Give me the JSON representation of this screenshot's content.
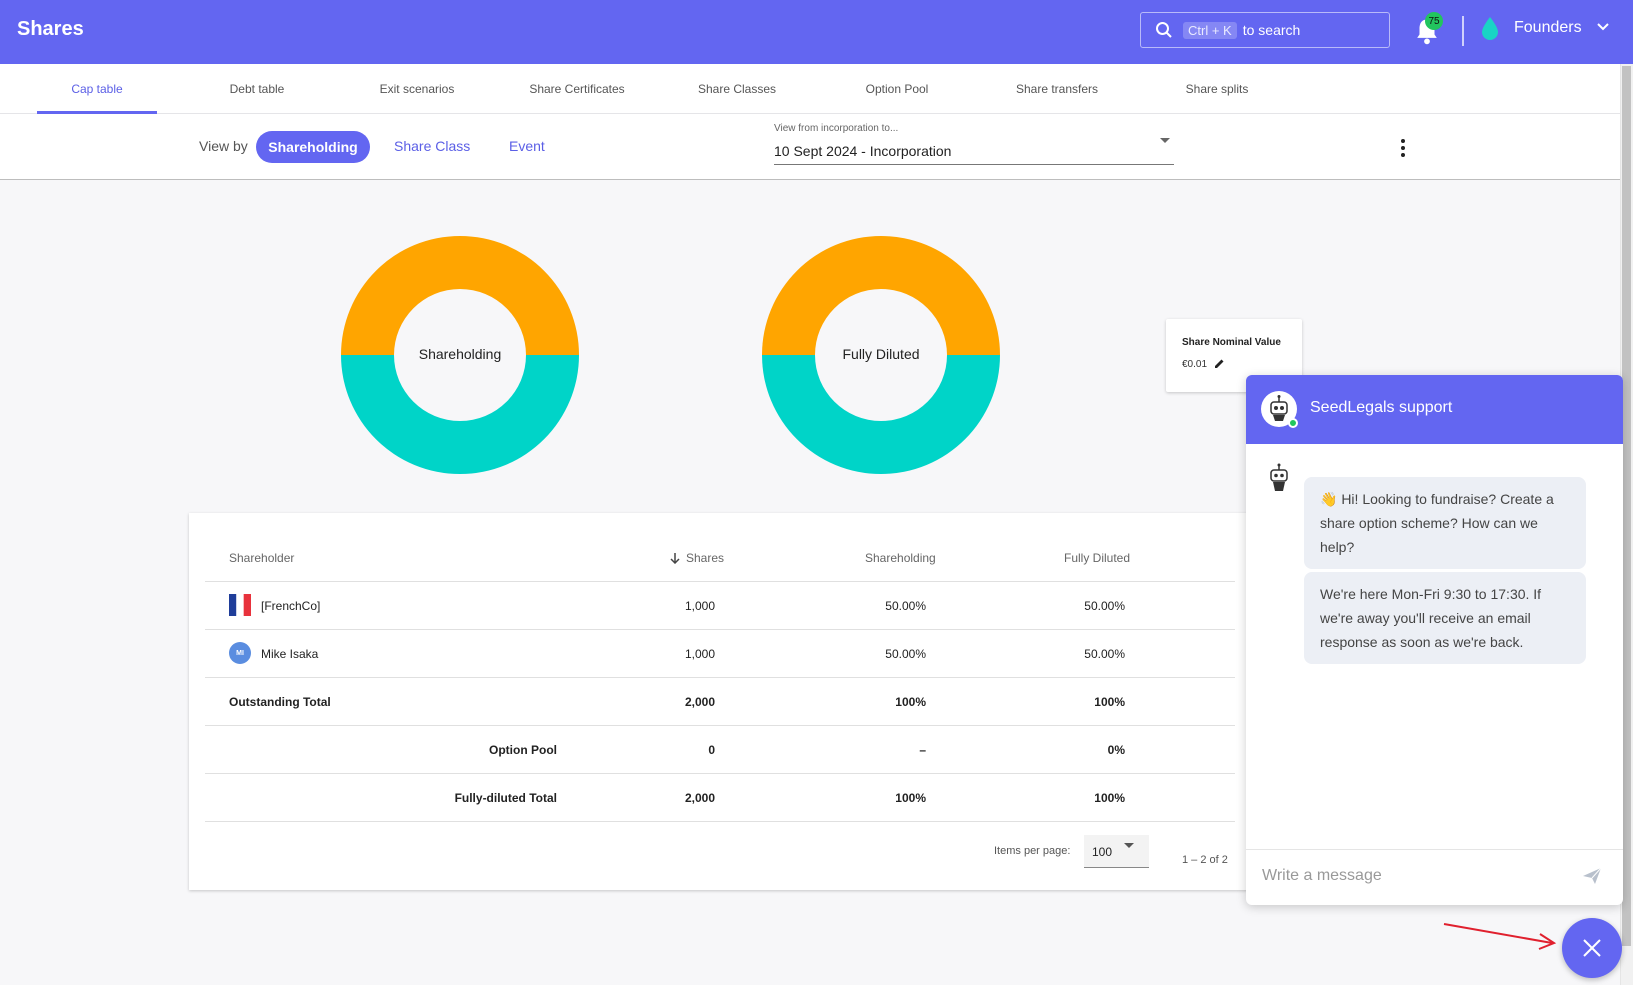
{
  "header": {
    "title": "Shares",
    "search_kbd": "Ctrl + K",
    "search_text": "to search",
    "notification_count": "75",
    "company": "Founders"
  },
  "tabs": [
    "Cap table",
    "Debt table",
    "Exit scenarios",
    "Share Certificates",
    "Share Classes",
    "Option Pool",
    "Share transfers",
    "Share splits"
  ],
  "active_tab": "Cap table",
  "view_by": {
    "label": "View by",
    "options": [
      "Shareholding",
      "Share Class",
      "Event"
    ],
    "selected": "Shareholding"
  },
  "period": {
    "label": "View from incorporation to...",
    "value": "10 Sept 2024 - Incorporation"
  },
  "donuts": [
    {
      "label": "Shareholding",
      "segments": [
        {
          "color": "#FFA500",
          "fraction": 0.5
        },
        {
          "color": "#00D4C8",
          "fraction": 0.5
        }
      ]
    },
    {
      "label": "Fully Diluted",
      "segments": [
        {
          "color": "#FFA500",
          "fraction": 0.5
        },
        {
          "color": "#00D4C8",
          "fraction": 0.5
        }
      ]
    }
  ],
  "nominal": {
    "title": "Share Nominal Value",
    "value": "€0.01"
  },
  "table": {
    "headers": {
      "shareholder": "Shareholder",
      "shares": "Shares",
      "shareholding": "Shareholding",
      "fully_diluted": "Fully Diluted"
    },
    "rows": [
      {
        "name": "[FrenchCo]",
        "shares": "1,000",
        "shareholding": "50.00%",
        "fully_diluted": "50.00%"
      },
      {
        "name": "Mike Isaka",
        "initials": "MI",
        "shares": "1,000",
        "shareholding": "50.00%",
        "fully_diluted": "50.00%"
      }
    ],
    "outstanding": {
      "label": "Outstanding Total",
      "shares": "2,000",
      "shareholding": "100%",
      "fully_diluted": "100%"
    },
    "option_pool": {
      "label": "Option Pool",
      "shares": "0",
      "shareholding": "–",
      "fully_diluted": "0%"
    },
    "fully_diluted_total": {
      "label": "Fully-diluted Total",
      "shares": "2,000",
      "shareholding": "100%",
      "fully_diluted": "100%"
    },
    "items_per_page_label": "Items per page:",
    "items_per_page": "100",
    "range": "1 – 2 of 2"
  },
  "chat": {
    "title": "SeedLegals support",
    "messages": [
      "👋 Hi! Looking to fundraise? Create a share option scheme? How can we help?",
      "We're here Mon-Fri 9:30 to 17:30. If we're away you'll receive an email response as soon as we're back."
    ],
    "input_placeholder": "Write a message"
  },
  "colors": {
    "brand": "#6366f1",
    "orange": "#FFA500",
    "teal": "#00D4C8"
  }
}
